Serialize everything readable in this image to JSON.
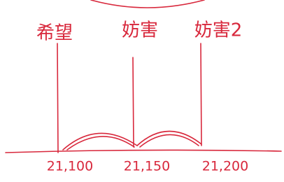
{
  "marks": [
    {
      "label": "希望",
      "value": "21,100"
    },
    {
      "label": "妨害",
      "value": "21,150"
    },
    {
      "label": "妨害2",
      "value": "21,200"
    }
  ]
}
